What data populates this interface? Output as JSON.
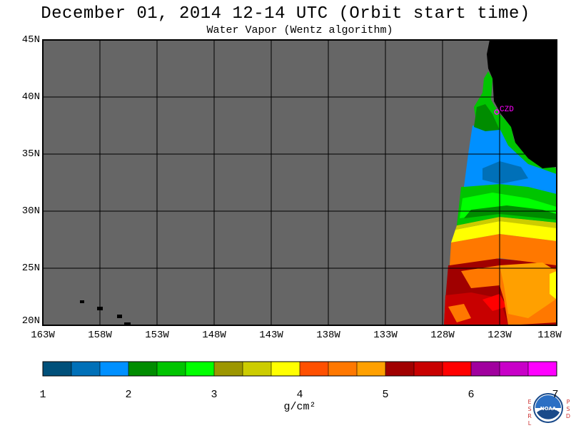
{
  "header": {
    "title": "December 01, 2014  12-14 UTC  (Orbit start time)",
    "subtitle": "Water Vapor (Wentz algorithm)"
  },
  "map": {
    "lat_labels": [
      "45N",
      "40N",
      "35N",
      "30N",
      "25N",
      "20N"
    ],
    "lon_labels": [
      "163W",
      "158W",
      "153W",
      "148W",
      "143W",
      "138W",
      "133W",
      "128W",
      "123W",
      "118W"
    ],
    "station_label": "CZD",
    "no_data_color": "#666666",
    "land_color": "#000000",
    "station_color": "#ff00ff"
  },
  "colorbar": {
    "colors": [
      "#00507a",
      "#0070b8",
      "#0090ff",
      "#008c00",
      "#00c400",
      "#00ff00",
      "#9c9600",
      "#cccc00",
      "#ffff00",
      "#ff5000",
      "#ff7800",
      "#ffa000",
      "#a00000",
      "#c80000",
      "#ff0000",
      "#a0009e",
      "#c800c8",
      "#ff00ff"
    ],
    "tick_labels": [
      "1",
      "2",
      "3",
      "4",
      "5",
      "6",
      "7"
    ],
    "units": "g/cm²"
  },
  "logo": {
    "left_letters": [
      "E",
      "S",
      "R",
      "L"
    ],
    "right_letters": [
      "P",
      "S",
      "D"
    ],
    "center_text": "NOAA"
  }
}
